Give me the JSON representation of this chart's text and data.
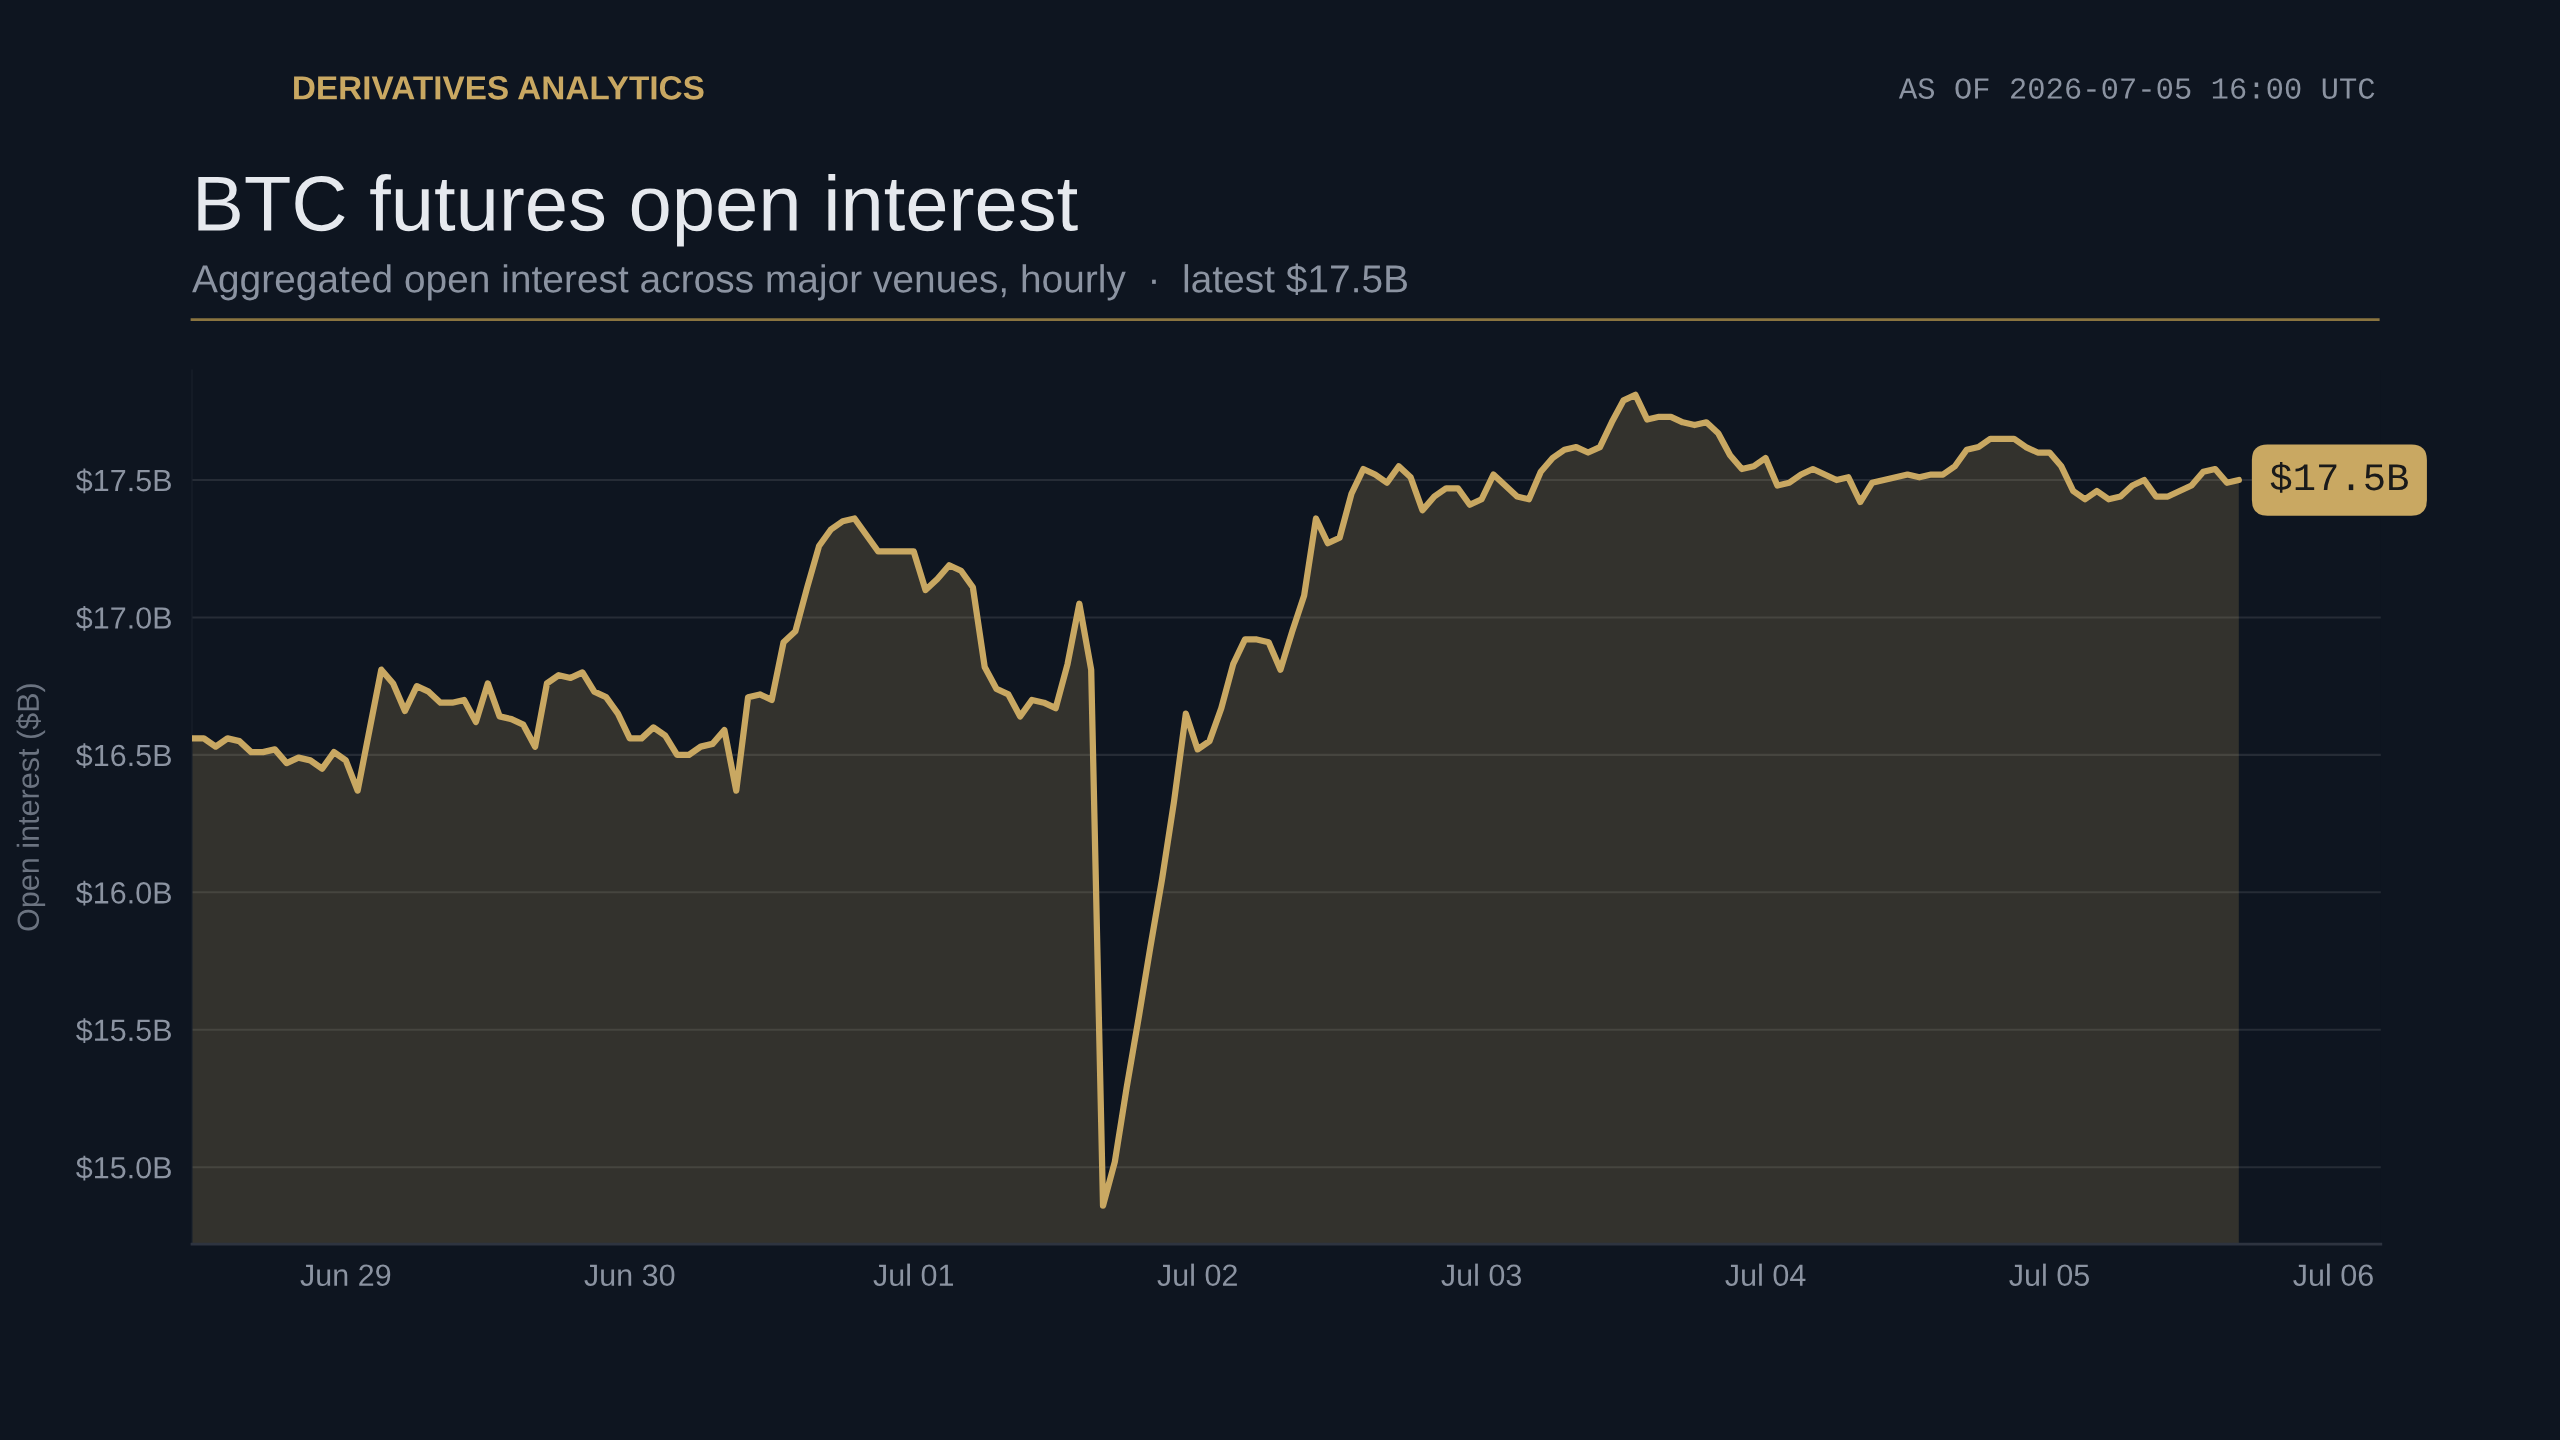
{
  "chart_data": {
    "type": "area",
    "title": "BTC futures open interest",
    "subtitle": "Aggregated open interest across major venues, hourly  ·  latest $17.5B",
    "ylabel": "Open interest ($B)",
    "annotations": [
      "DERIVATIVES ANALYTICS",
      "AS OF 2026-07-05 16:00 UTC",
      {
        "text": "$17.5B",
        "x": "2026-07-05T16:00",
        "y": 17.5
      }
    ],
    "x": [
      "2026-06-28T11:00",
      "2026-06-28T12:00",
      "2026-06-28T13:00",
      "2026-06-28T14:00",
      "2026-06-28T15:00",
      "2026-06-28T16:00",
      "2026-06-28T17:00",
      "2026-06-28T18:00",
      "2026-06-28T19:00",
      "2026-06-28T20:00",
      "2026-06-28T21:00",
      "2026-06-28T22:00",
      "2026-06-28T23:00",
      "2026-06-29T00:00",
      "2026-06-29T01:00",
      "2026-06-29T02:00",
      "2026-06-29T03:00",
      "2026-06-29T04:00",
      "2026-06-29T05:00",
      "2026-06-29T06:00",
      "2026-06-29T07:00",
      "2026-06-29T08:00",
      "2026-06-29T09:00",
      "2026-06-29T10:00",
      "2026-06-29T11:00",
      "2026-06-29T12:00",
      "2026-06-29T13:00",
      "2026-06-29T14:00",
      "2026-06-29T15:00",
      "2026-06-29T16:00",
      "2026-06-29T17:00",
      "2026-06-29T18:00",
      "2026-06-29T19:00",
      "2026-06-29T20:00",
      "2026-06-29T21:00",
      "2026-06-29T22:00",
      "2026-06-29T23:00",
      "2026-06-30T00:00",
      "2026-06-30T01:00",
      "2026-06-30T02:00",
      "2026-06-30T03:00",
      "2026-06-30T04:00",
      "2026-06-30T05:00",
      "2026-06-30T06:00",
      "2026-06-30T07:00",
      "2026-06-30T08:00",
      "2026-06-30T09:00",
      "2026-06-30T10:00",
      "2026-06-30T11:00",
      "2026-06-30T12:00",
      "2026-06-30T13:00",
      "2026-06-30T14:00",
      "2026-06-30T15:00",
      "2026-06-30T16:00",
      "2026-06-30T17:00",
      "2026-06-30T18:00",
      "2026-06-30T19:00",
      "2026-06-30T20:00",
      "2026-06-30T21:00",
      "2026-06-30T22:00",
      "2026-06-30T23:00",
      "2026-07-01T00:00",
      "2026-07-01T01:00",
      "2026-07-01T02:00",
      "2026-07-01T03:00",
      "2026-07-01T04:00",
      "2026-07-01T05:00",
      "2026-07-01T06:00",
      "2026-07-01T07:00",
      "2026-07-01T08:00",
      "2026-07-01T09:00",
      "2026-07-01T10:00",
      "2026-07-01T11:00",
      "2026-07-01T12:00",
      "2026-07-01T13:00",
      "2026-07-01T14:00",
      "2026-07-01T15:00",
      "2026-07-01T16:00",
      "2026-07-01T17:00",
      "2026-07-01T18:00",
      "2026-07-01T19:00",
      "2026-07-01T20:00",
      "2026-07-01T21:00",
      "2026-07-01T22:00",
      "2026-07-01T23:00",
      "2026-07-02T00:00",
      "2026-07-02T01:00",
      "2026-07-02T02:00",
      "2026-07-02T03:00",
      "2026-07-02T04:00",
      "2026-07-02T05:00",
      "2026-07-02T06:00",
      "2026-07-02T07:00",
      "2026-07-02T08:00",
      "2026-07-02T09:00",
      "2026-07-02T10:00",
      "2026-07-02T11:00",
      "2026-07-02T12:00",
      "2026-07-02T13:00",
      "2026-07-02T14:00",
      "2026-07-02T15:00",
      "2026-07-02T16:00",
      "2026-07-02T17:00",
      "2026-07-02T18:00",
      "2026-07-02T19:00",
      "2026-07-02T20:00",
      "2026-07-02T21:00",
      "2026-07-02T22:00",
      "2026-07-02T23:00",
      "2026-07-03T00:00",
      "2026-07-03T01:00",
      "2026-07-03T02:00",
      "2026-07-03T03:00",
      "2026-07-03T04:00",
      "2026-07-03T05:00",
      "2026-07-03T06:00",
      "2026-07-03T07:00",
      "2026-07-03T08:00",
      "2026-07-03T09:00",
      "2026-07-03T10:00",
      "2026-07-03T11:00",
      "2026-07-03T12:00",
      "2026-07-03T13:00",
      "2026-07-03T14:00",
      "2026-07-03T15:00",
      "2026-07-03T16:00",
      "2026-07-03T17:00",
      "2026-07-03T18:00",
      "2026-07-03T19:00",
      "2026-07-03T20:00",
      "2026-07-03T21:00",
      "2026-07-03T22:00",
      "2026-07-03T23:00",
      "2026-07-04T00:00",
      "2026-07-04T01:00",
      "2026-07-04T02:00",
      "2026-07-04T03:00",
      "2026-07-04T04:00",
      "2026-07-04T05:00",
      "2026-07-04T06:00",
      "2026-07-04T07:00",
      "2026-07-04T08:00",
      "2026-07-04T09:00",
      "2026-07-04T10:00",
      "2026-07-04T11:00",
      "2026-07-04T12:00",
      "2026-07-04T13:00",
      "2026-07-04T14:00",
      "2026-07-04T15:00",
      "2026-07-04T16:00",
      "2026-07-04T17:00",
      "2026-07-04T18:00",
      "2026-07-04T19:00",
      "2026-07-04T20:00",
      "2026-07-04T21:00",
      "2026-07-04T22:00",
      "2026-07-04T23:00",
      "2026-07-05T00:00",
      "2026-07-05T01:00",
      "2026-07-05T02:00",
      "2026-07-05T03:00",
      "2026-07-05T04:00",
      "2026-07-05T05:00",
      "2026-07-05T06:00",
      "2026-07-05T07:00",
      "2026-07-05T08:00",
      "2026-07-05T09:00",
      "2026-07-05T10:00",
      "2026-07-05T11:00",
      "2026-07-05T12:00",
      "2026-07-05T13:00",
      "2026-07-05T14:00",
      "2026-07-05T15:00",
      "2026-07-05T16:00"
    ],
    "series": [
      {
        "color": "#c9a862",
        "values": [
          16.56,
          16.56,
          16.53,
          16.56,
          16.55,
          16.51,
          16.51,
          16.52,
          16.47,
          16.49,
          16.48,
          16.45,
          16.51,
          16.48,
          16.37,
          16.59,
          16.81,
          16.76,
          16.66,
          16.75,
          16.73,
          16.69,
          16.69,
          16.7,
          16.62,
          16.76,
          16.64,
          16.63,
          16.61,
          16.53,
          16.76,
          16.79,
          16.78,
          16.8,
          16.73,
          16.71,
          16.65,
          16.56,
          16.56,
          16.6,
          16.57,
          16.5,
          16.5,
          16.53,
          16.54,
          16.59,
          16.37,
          16.71,
          16.72,
          16.7,
          16.91,
          16.95,
          17.11,
          17.26,
          17.32,
          17.35,
          17.36,
          17.3,
          17.24,
          17.24,
          17.24,
          17.24,
          17.1,
          17.14,
          17.19,
          17.17,
          17.11,
          16.82,
          16.74,
          16.72,
          16.64,
          16.7,
          16.69,
          16.67,
          16.83,
          17.05,
          16.81,
          14.86,
          15.02,
          15.29,
          15.54,
          15.8,
          16.05,
          16.33,
          16.65,
          16.52,
          16.55,
          16.67,
          16.83,
          16.92,
          16.92,
          16.91,
          16.81,
          16.95,
          17.08,
          17.36,
          17.27,
          17.29,
          17.45,
          17.54,
          17.52,
          17.49,
          17.55,
          17.51,
          17.39,
          17.44,
          17.47,
          17.47,
          17.41,
          17.43,
          17.52,
          17.48,
          17.44,
          17.43,
          17.53,
          17.58,
          17.61,
          17.62,
          17.6,
          17.62,
          17.71,
          17.79,
          17.81,
          17.72,
          17.73,
          17.73,
          17.71,
          17.7,
          17.71,
          17.67,
          17.59,
          17.54,
          17.55,
          17.58,
          17.48,
          17.49,
          17.52,
          17.54,
          17.52,
          17.5,
          17.51,
          17.42,
          17.49,
          17.5,
          17.51,
          17.52,
          17.51,
          17.52,
          17.52,
          17.55,
          17.61,
          17.62,
          17.65,
          17.65,
          17.65,
          17.62,
          17.6,
          17.6,
          17.55,
          17.46,
          17.43,
          17.46,
          17.43,
          17.44,
          17.48,
          17.5,
          17.44,
          17.44,
          17.46,
          17.48,
          17.53,
          17.54,
          17.49,
          17.5
        ]
      }
    ],
    "xlim": [
      "2026-06-28T11:00",
      "2026-07-06T04:00"
    ],
    "xticks": [
      {
        "value": "2026-06-29",
        "label": "Jun 29"
      },
      {
        "value": "2026-06-30",
        "label": "Jun 30"
      },
      {
        "value": "2026-07-01",
        "label": "Jul 01"
      },
      {
        "value": "2026-07-02",
        "label": "Jul 02"
      },
      {
        "value": "2026-07-03",
        "label": "Jul 03"
      },
      {
        "value": "2026-07-04",
        "label": "Jul 04"
      },
      {
        "value": "2026-07-05",
        "label": "Jul 05"
      },
      {
        "value": "2026-07-06",
        "label": "Jul 06"
      }
    ],
    "ylim": [
      14.72,
      17.9
    ],
    "yticks": [
      {
        "value": 15.0,
        "label": "$15.0B"
      },
      {
        "value": 15.5,
        "label": "$15.5B"
      },
      {
        "value": 16.0,
        "label": "$16.0B"
      },
      {
        "value": 16.5,
        "label": "$16.5B"
      },
      {
        "value": 17.0,
        "label": "$17.0B"
      },
      {
        "value": 17.5,
        "label": "$17.5B"
      }
    ],
    "grid": "y"
  }
}
